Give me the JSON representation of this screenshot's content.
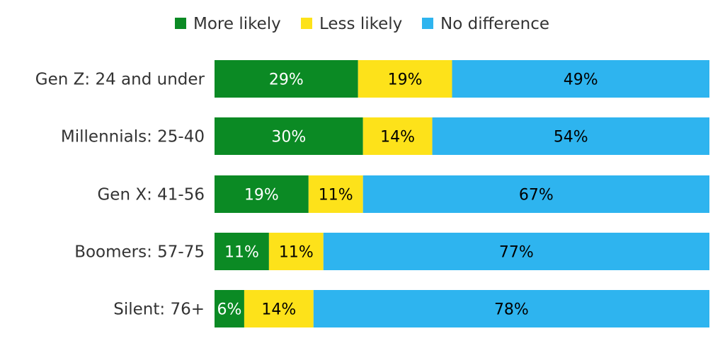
{
  "chart_data": {
    "type": "bar",
    "orientation": "horizontal",
    "stacked": true,
    "categories": [
      "Gen Z: 24 and under",
      "Millennials: 25-40",
      "Gen X: 41-56",
      "Boomers: 57-75",
      "Silent: 76+"
    ],
    "series": [
      {
        "name": "More likely",
        "color": "#0b8a24",
        "label_color": "#ffffff",
        "values": [
          29,
          30,
          19,
          11,
          6
        ]
      },
      {
        "name": "Less likely",
        "color": "#fde21a",
        "label_color": "#000000",
        "values": [
          19,
          14,
          11,
          11,
          14
        ]
      },
      {
        "name": "No difference",
        "color": "#2eb4ef",
        "label_color": "#000000",
        "values": [
          49,
          54,
          67,
          77,
          78
        ]
      }
    ],
    "value_suffix": "%",
    "legend_position": "top-center",
    "grid": false,
    "axis_visible": false
  }
}
